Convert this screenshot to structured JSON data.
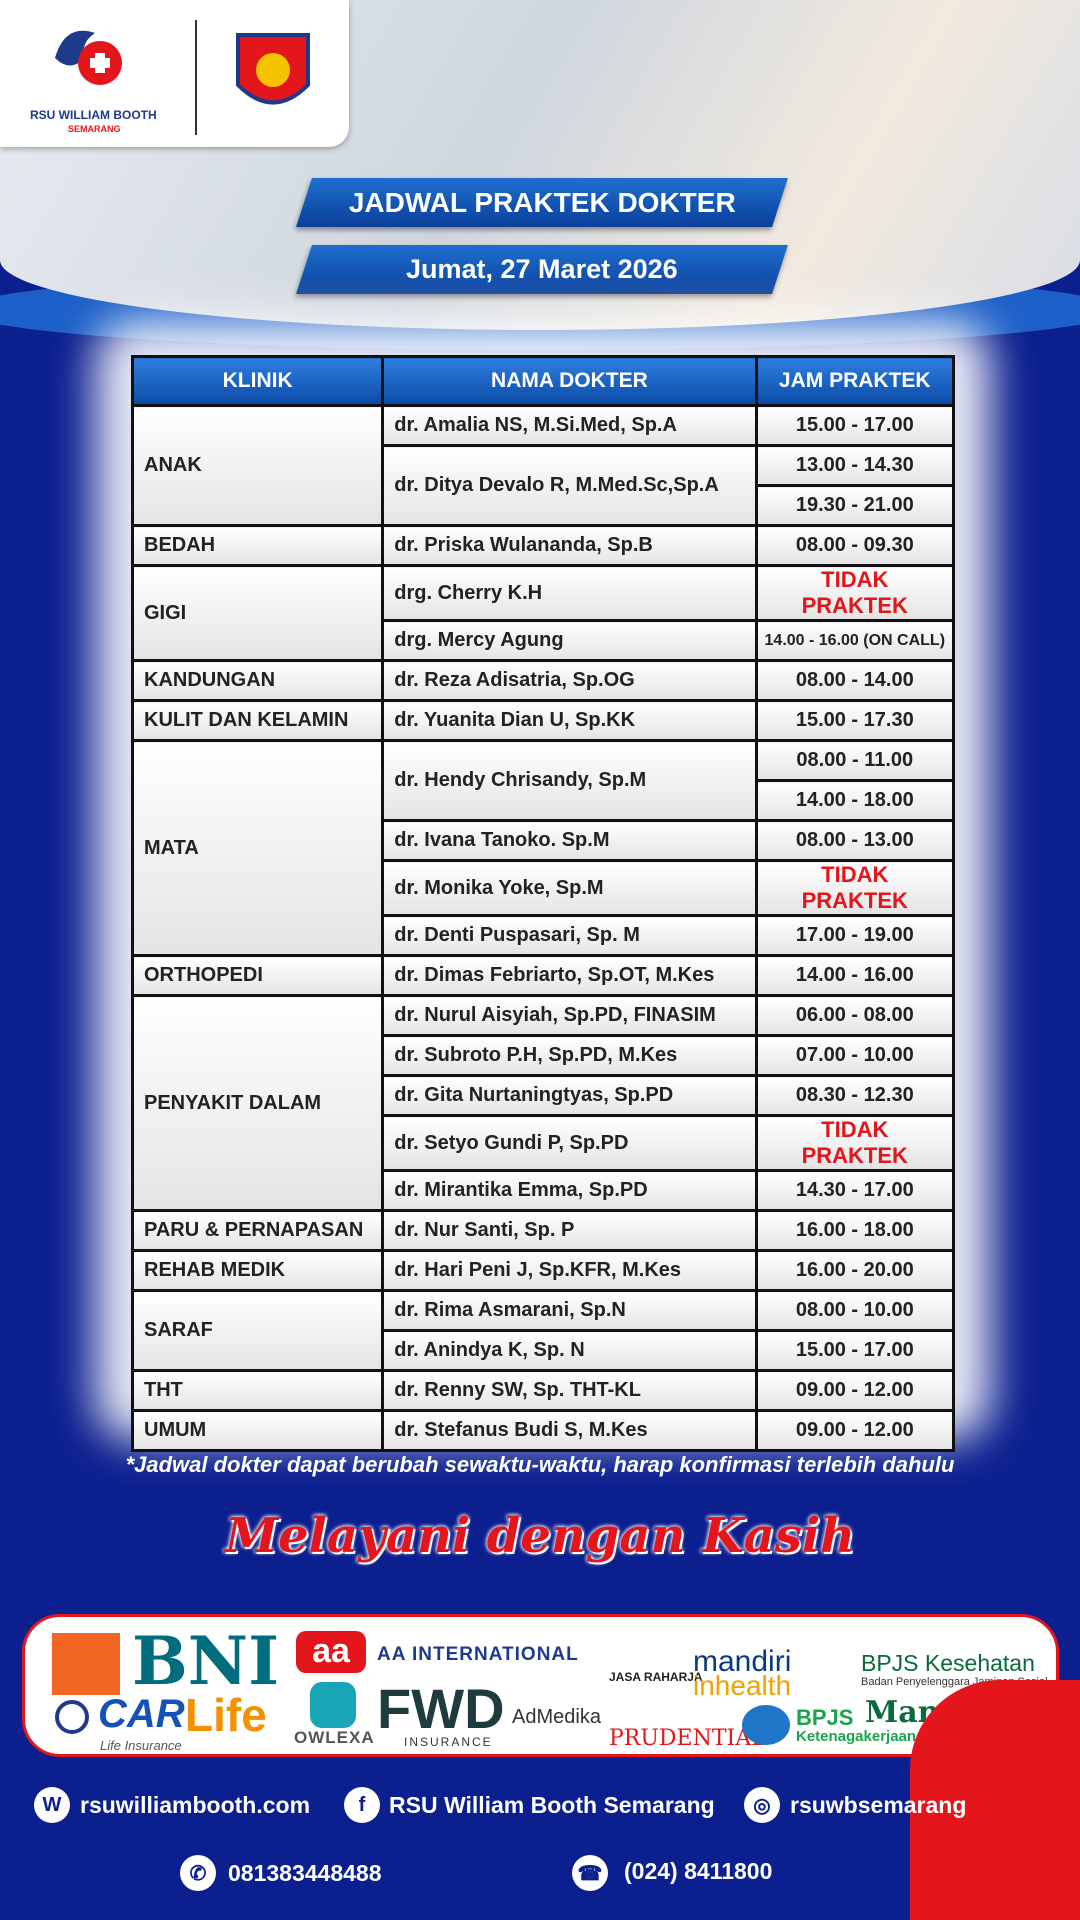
{
  "header": {
    "hospital": "RSU WILLIAM BOOTH",
    "city": "SEMARANG",
    "title": "JADWAL PRAKTEK DOKTER",
    "date": "Jumat, 27 Maret 2026"
  },
  "table": {
    "columns": [
      "KLINIK",
      "NAMA DOKTER",
      "JAM PRAKTEK"
    ],
    "clinics": [
      {
        "name": "ANAK",
        "doctors": [
          {
            "name": "dr. Amalia NS, M.Si.Med, Sp.A",
            "times": [
              "15.00 - 17.00"
            ]
          },
          {
            "name": "dr. Ditya Devalo R, M.Med.Sc,Sp.A",
            "times": [
              "13.00 - 14.30",
              "19.30 - 21.00"
            ]
          }
        ]
      },
      {
        "name": "BEDAH",
        "doctors": [
          {
            "name": "dr. Priska Wulananda, Sp.B",
            "times": [
              "08.00 - 09.30"
            ]
          }
        ]
      },
      {
        "name": "GIGI",
        "doctors": [
          {
            "name": "drg. Cherry K.H",
            "times": [
              "TIDAK PRAKTEK"
            ]
          },
          {
            "name": "drg. Mercy Agung",
            "times": [
              "14.00 - 16.00 (ON CALL)"
            ]
          }
        ]
      },
      {
        "name": "KANDUNGAN",
        "doctors": [
          {
            "name": "dr. Reza Adisatria, Sp.OG",
            "times": [
              "08.00 - 14.00"
            ]
          }
        ]
      },
      {
        "name": "KULIT DAN KELAMIN",
        "doctors": [
          {
            "name": "dr. Yuanita Dian U, Sp.KK",
            "times": [
              "15.00 - 17.30"
            ]
          }
        ]
      },
      {
        "name": "MATA",
        "doctors": [
          {
            "name": "dr. Hendy Chrisandy, Sp.M",
            "times": [
              "08.00 - 11.00",
              "14.00 - 18.00"
            ]
          },
          {
            "name": "dr. Ivana Tanoko. Sp.M",
            "times": [
              "08.00 - 13.00"
            ]
          },
          {
            "name": "dr. Monika Yoke, Sp.M",
            "times": [
              "TIDAK PRAKTEK"
            ]
          },
          {
            "name": "dr. Denti Puspasari, Sp. M",
            "times": [
              "17.00 - 19.00"
            ]
          }
        ]
      },
      {
        "name": "ORTHOPEDI",
        "doctors": [
          {
            "name": "dr. Dimas Febriarto, Sp.OT, M.Kes",
            "times": [
              "14.00 - 16.00"
            ]
          }
        ]
      },
      {
        "name": "PENYAKIT DALAM",
        "doctors": [
          {
            "name": "dr. Nurul Aisyiah, Sp.PD, FINASIM",
            "times": [
              "06.00 - 08.00"
            ]
          },
          {
            "name": "dr. Subroto P.H, Sp.PD, M.Kes",
            "times": [
              "07.00 - 10.00"
            ]
          },
          {
            "name": "dr. Gita Nurtaningtyas, Sp.PD",
            "times": [
              "08.30 - 12.30"
            ]
          },
          {
            "name": "dr. Setyo Gundi P, Sp.PD",
            "times": [
              "TIDAK PRAKTEK"
            ]
          },
          {
            "name": "dr. Mirantika Emma, Sp.PD",
            "times": [
              "14.30 - 17.00"
            ]
          }
        ]
      },
      {
        "name": "PARU & PERNAPASAN",
        "doctors": [
          {
            "name": "dr. Nur Santi, Sp. P",
            "times": [
              "16.00 - 18.00"
            ]
          }
        ]
      },
      {
        "name": "REHAB MEDIK",
        "doctors": [
          {
            "name": "dr. Hari Peni J, Sp.KFR, M.Kes",
            "times": [
              "16.00 - 20.00"
            ]
          }
        ]
      },
      {
        "name": "SARAF",
        "doctors": [
          {
            "name": "dr. Rima Asmarani, Sp.N",
            "times": [
              "08.00 - 10.00"
            ]
          },
          {
            "name": "dr. Anindya K, Sp. N",
            "times": [
              "15.00 - 17.00"
            ]
          }
        ]
      },
      {
        "name": "THT",
        "doctors": [
          {
            "name": "dr. Renny SW, Sp. THT-KL",
            "times": [
              "09.00 - 12.00"
            ]
          }
        ]
      },
      {
        "name": "UMUM",
        "doctors": [
          {
            "name": "dr. Stefanus Budi S, M.Kes",
            "times": [
              "09.00 - 12.00"
            ]
          }
        ]
      }
    ]
  },
  "note": "*Jadwal dokter dapat berubah sewaktu-waktu, harap konfirmasi terlebih dahulu",
  "slogan": "Melayani dengan Kasih",
  "partners": {
    "bni": "BNI",
    "aa": "aa",
    "aa_international": "AA INTERNATIONAL",
    "car": "CAR",
    "life": "Life",
    "life_insurance": "Life Insurance",
    "owlexa": "OWLEXA",
    "fwd": "FWD",
    "fwd_insurance": "INSURANCE",
    "admedika": "AdMedika",
    "jasa_raharja": "JASA RAHARJA",
    "prudential": "PRUDENTIAL",
    "mandiri": "mandiri",
    "inhealth": "inhealth",
    "bpjs_kesehatan": "BPJS Kesehatan",
    "bpjs_kesehatan_sub": "Badan Penyelenggara Jaminan Sosial",
    "bpjs_tk": "BPJS",
    "bpjs_tk_sub": "Ketenagakerjaan",
    "manulife": "Manulife"
  },
  "contacts": {
    "website": "rsuwilliambooth.com",
    "facebook": "RSU William Booth Semarang",
    "instagram": "rsuwbsemarang",
    "whatsapp": "081383448488",
    "phone": "(024) 8411800"
  }
}
